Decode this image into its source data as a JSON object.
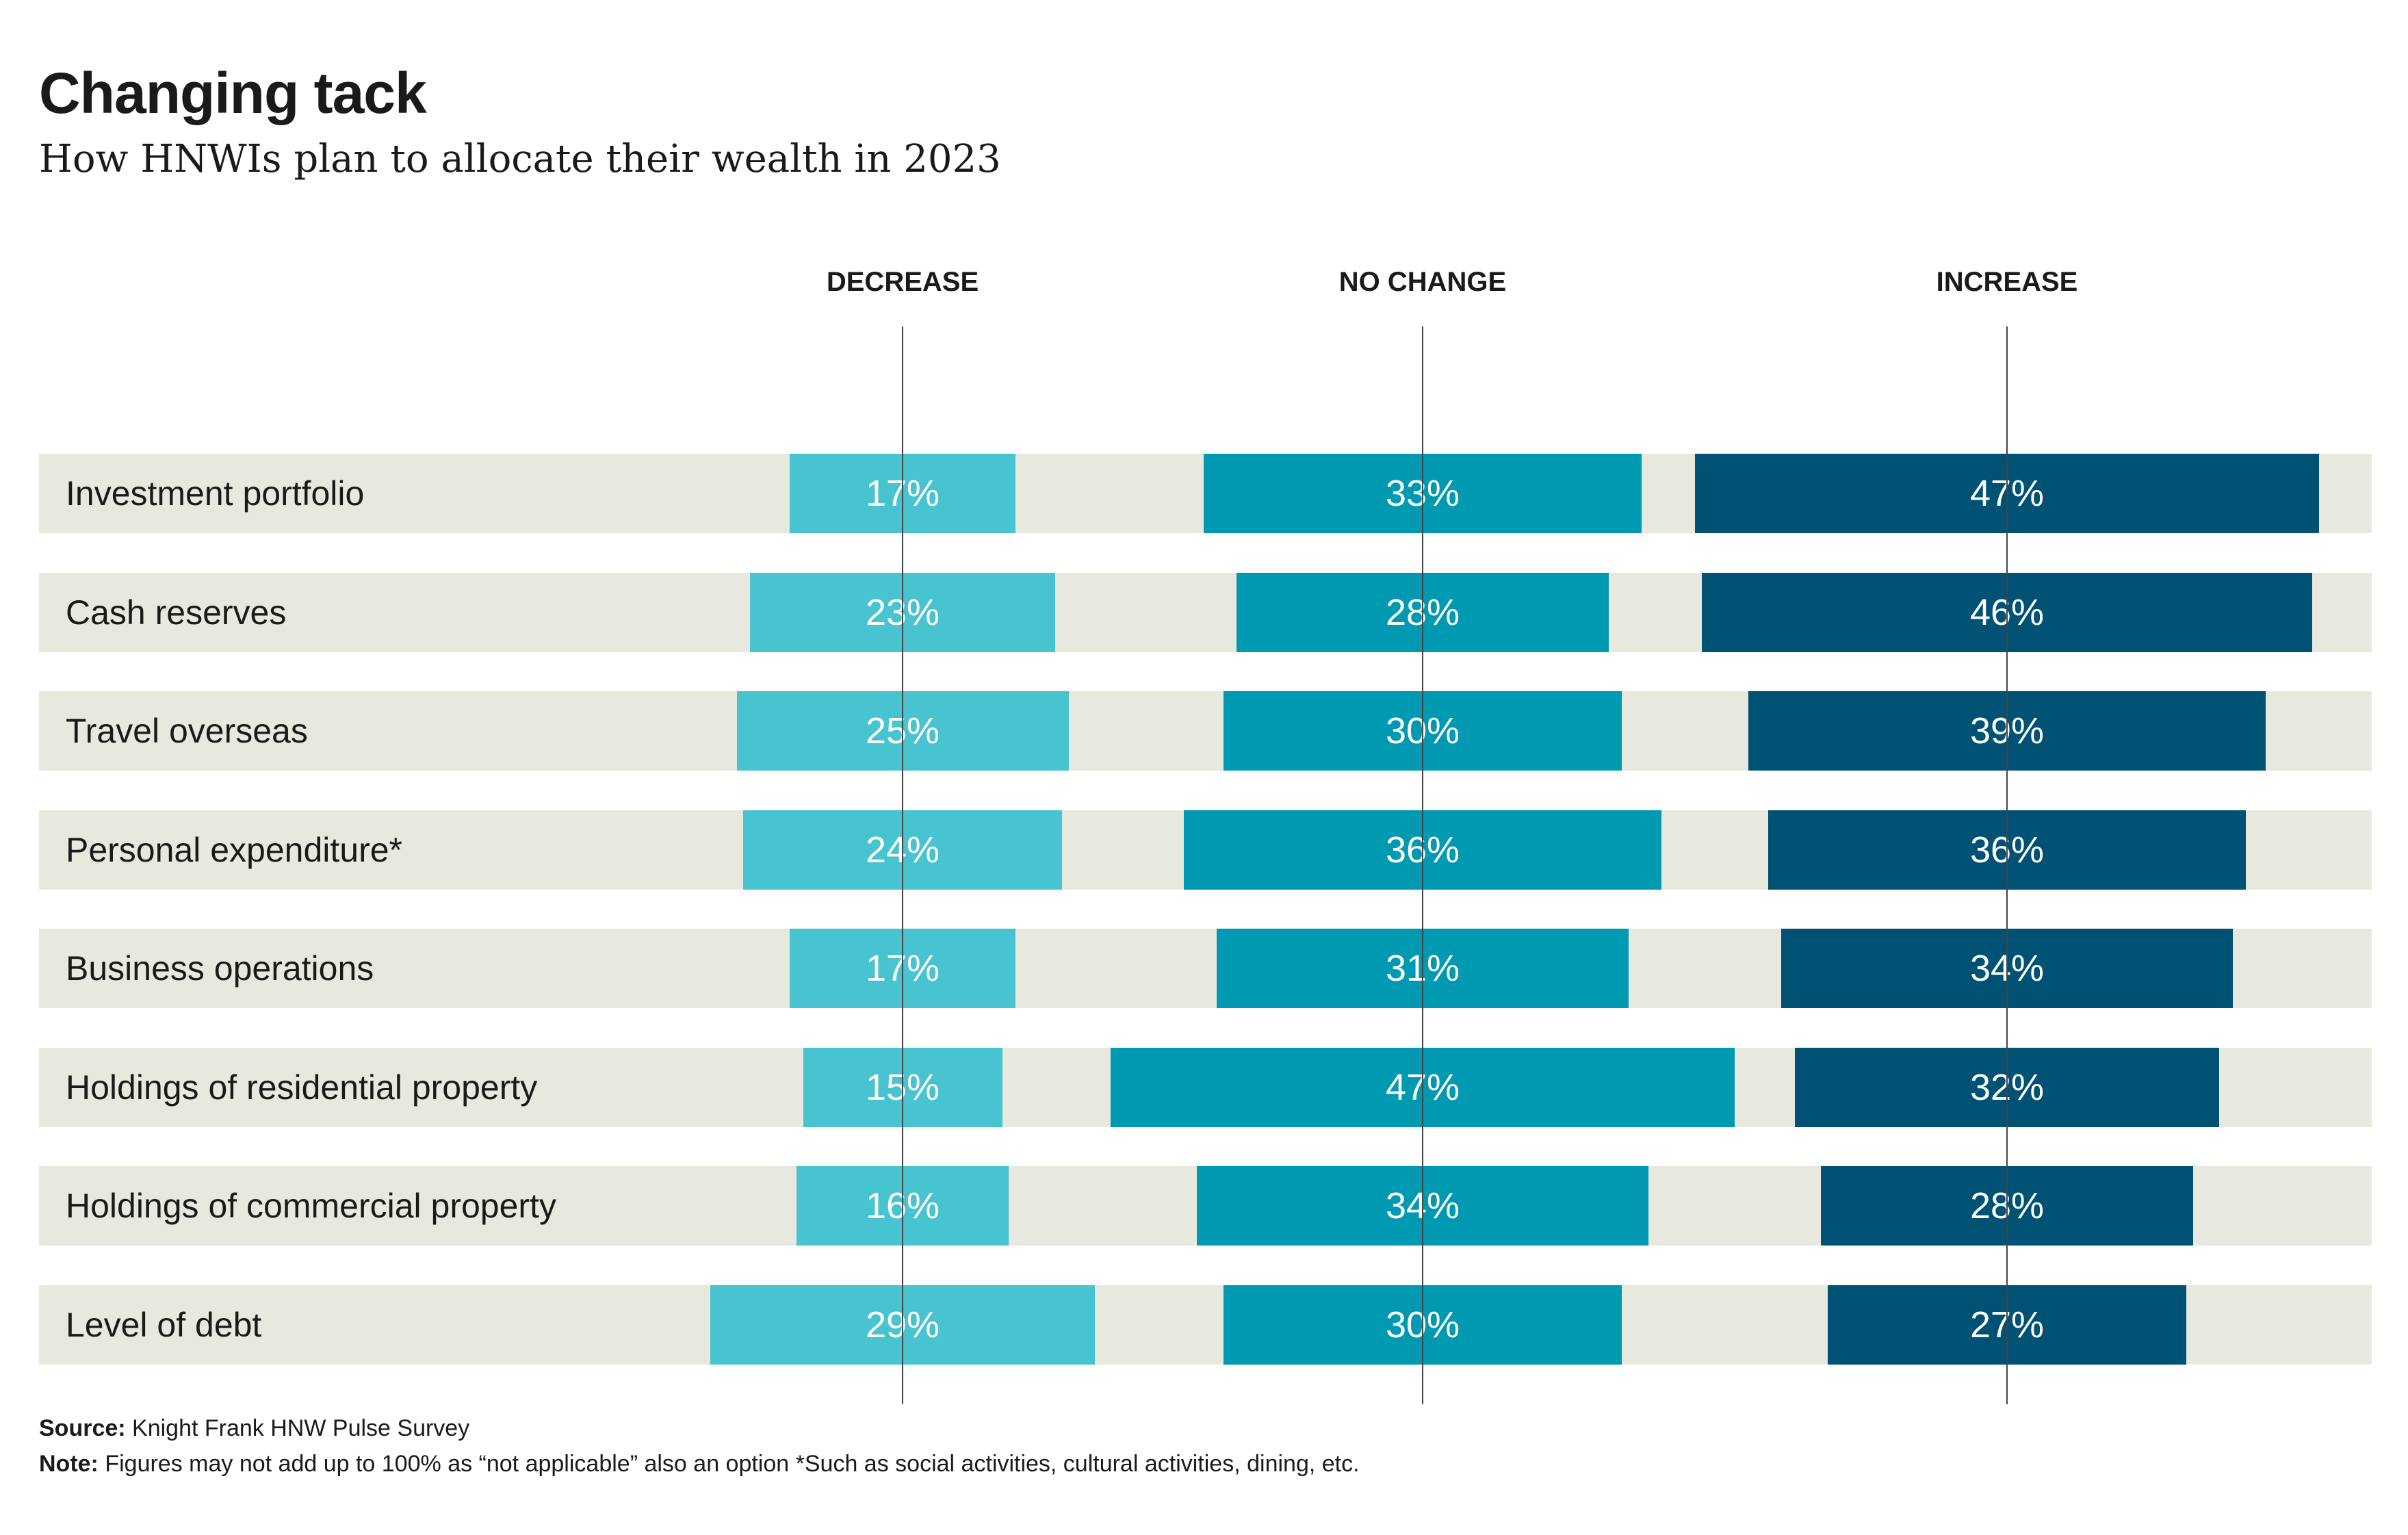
{
  "title": "Changing tack",
  "subtitle": "How HNWIs plan to allocate their wealth in 2023",
  "footer": {
    "source_label": "Source:",
    "source_text": " Knight Frank HNW Pulse Survey",
    "note_label": "Note:",
    "note_text": " Figures may not add up to 100% as “not applicable” also an option  *Such as social activities, cultural activities, dining, etc."
  },
  "colors": {
    "decrease": "#48c3d0",
    "no_change": "#0099b2",
    "increase": "#005275",
    "row_bg": "#e8e9de"
  },
  "chart_data": {
    "type": "bar",
    "title": "Changing tack",
    "subtitle": "How HNWIs plan to allocate their wealth in 2023",
    "categories": [
      "Investment portfolio",
      "Cash reserves",
      "Travel overseas",
      "Personal expenditure*",
      "Business operations",
      "Holdings of residential property",
      "Holdings of commercial property",
      "Level of debt"
    ],
    "series": [
      {
        "name": "DECREASE",
        "values": [
          17,
          23,
          25,
          24,
          17,
          15,
          16,
          29
        ]
      },
      {
        "name": "NO CHANGE",
        "values": [
          33,
          28,
          30,
          36,
          31,
          47,
          34,
          30
        ]
      },
      {
        "name": "INCREASE",
        "values": [
          47,
          46,
          39,
          36,
          34,
          32,
          28,
          27
        ]
      }
    ],
    "unit": "%",
    "legend": "top"
  }
}
